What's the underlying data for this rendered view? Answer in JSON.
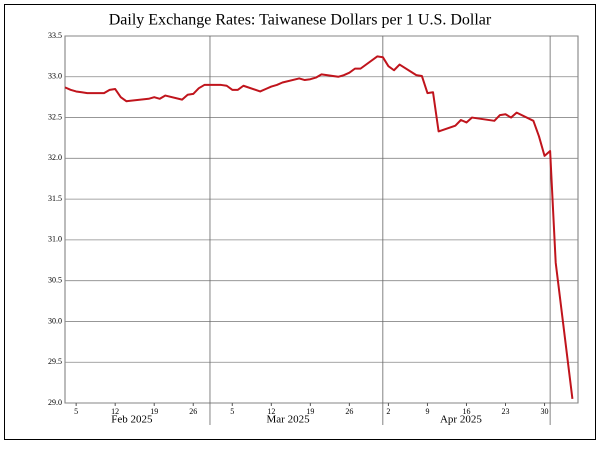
{
  "chart_data": {
    "type": "line",
    "title": "Daily Exchange Rates: Taiwanese Dollars per 1 U.S. Dollar",
    "x": [
      "2025-02-03",
      "2025-02-04",
      "2025-02-05",
      "2025-02-06",
      "2025-02-07",
      "2025-02-10",
      "2025-02-11",
      "2025-02-12",
      "2025-02-13",
      "2025-02-14",
      "2025-02-18",
      "2025-02-19",
      "2025-02-20",
      "2025-02-21",
      "2025-02-24",
      "2025-02-25",
      "2025-02-26",
      "2025-02-27",
      "2025-02-28",
      "2025-03-03",
      "2025-03-04",
      "2025-03-05",
      "2025-03-06",
      "2025-03-07",
      "2025-03-10",
      "2025-03-11",
      "2025-03-12",
      "2025-03-13",
      "2025-03-14",
      "2025-03-17",
      "2025-03-18",
      "2025-03-19",
      "2025-03-20",
      "2025-03-21",
      "2025-03-24",
      "2025-03-25",
      "2025-03-26",
      "2025-03-27",
      "2025-03-28",
      "2025-03-31",
      "2025-04-01",
      "2025-04-02",
      "2025-04-03",
      "2025-04-04",
      "2025-04-07",
      "2025-04-08",
      "2025-04-09",
      "2025-04-10",
      "2025-04-11",
      "2025-04-14",
      "2025-04-15",
      "2025-04-16",
      "2025-04-17",
      "2025-04-21",
      "2025-04-22",
      "2025-04-23",
      "2025-04-24",
      "2025-04-25",
      "2025-04-28",
      "2025-04-29",
      "2025-04-30",
      "2025-05-01",
      "2025-05-02",
      "2025-05-05"
    ],
    "series": [
      {
        "color": "#c0141c",
        "values": [
          32.87,
          32.84,
          32.82,
          32.81,
          32.8,
          32.8,
          32.84,
          32.85,
          32.75,
          32.7,
          32.73,
          32.75,
          32.73,
          32.77,
          32.72,
          32.78,
          32.79,
          32.86,
          32.9,
          32.9,
          32.89,
          32.84,
          32.84,
          32.89,
          32.82,
          32.85,
          32.88,
          32.9,
          32.93,
          32.98,
          32.96,
          32.97,
          32.99,
          33.03,
          33.0,
          33.02,
          33.05,
          33.1,
          33.1,
          33.25,
          33.24,
          33.13,
          33.08,
          33.15,
          33.02,
          33.01,
          32.8,
          32.81,
          32.33,
          32.4,
          32.47,
          32.44,
          32.5,
          32.46,
          32.53,
          32.54,
          32.5,
          32.56,
          32.46,
          32.27,
          32.03,
          32.09,
          30.72,
          29.05
        ]
      }
    ],
    "xlim": [
      "2025-02-03",
      "2025-05-06"
    ],
    "xticks": [
      {
        "value": "2025-02-05",
        "label": "5"
      },
      {
        "value": "2025-02-12",
        "label": "12"
      },
      {
        "value": "2025-02-19",
        "label": "19"
      },
      {
        "value": "2025-02-26",
        "label": "26"
      },
      {
        "value": "2025-03-05",
        "label": "5"
      },
      {
        "value": "2025-03-12",
        "label": "12"
      },
      {
        "value": "2025-03-19",
        "label": "19"
      },
      {
        "value": "2025-03-26",
        "label": "26"
      },
      {
        "value": "2025-04-02",
        "label": "2"
      },
      {
        "value": "2025-04-09",
        "label": "9"
      },
      {
        "value": "2025-04-16",
        "label": "16"
      },
      {
        "value": "2025-04-23",
        "label": "23"
      },
      {
        "value": "2025-04-30",
        "label": "30"
      }
    ],
    "month_labels": [
      {
        "value": "2025-02-15",
        "label": "Feb 2025"
      },
      {
        "value": "2025-03-15",
        "label": "Mar 2025"
      },
      {
        "value": "2025-04-15",
        "label": "Apr 2025"
      }
    ],
    "xgrid": [
      "2025-03-01",
      "2025-04-01",
      "2025-05-01"
    ],
    "ylim": [
      29.0,
      33.5
    ],
    "yticks": [
      {
        "value": 29.0,
        "label": "29.0"
      },
      29.5,
      {
        "value": 30.0,
        "label": "30.0"
      },
      30.5,
      {
        "value": 31.0,
        "label": "31.0"
      },
      31.5,
      {
        "value": 32.0,
        "label": "32.0"
      },
      32.5,
      {
        "value": 33.0,
        "label": "33.0"
      },
      33.5
    ],
    "grid": true
  }
}
